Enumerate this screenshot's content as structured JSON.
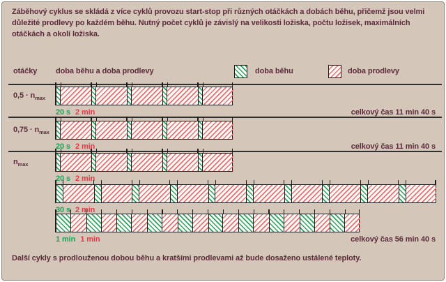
{
  "intro": {
    "text": "Záběhový cyklus se skládá z více cyklů provozu start-stop při různých otáčkách a dobách běhu, přičemž jsou velmi důležité prodlevy po každém běhu. Nutný počet cyklů je závislý na velikosti ložiska, počtu ložisek, maximálních otáčkách a okolí ložiska."
  },
  "header": {
    "axis_label": "otáčky",
    "bars_title": "doba běhu a doba prodlevy",
    "legend_run_label": "doba běhu",
    "legend_dwell_label": "doba prodlevy"
  },
  "footer": {
    "text": "Další cykly s prodlouženou dobou běhu a kratšími prodlevami až bude dosaženo ustálené teploty."
  },
  "colors": {
    "background": "#d4c7ba",
    "text_maroon": "#5d2b3b",
    "run_green": "#2aa261",
    "dwell_red": "#ef6d70",
    "run_text_green": "#1ca158",
    "dwell_text_red": "#e53946",
    "line_black": "#1c1c1c"
  },
  "chart_data": {
    "type": "bar",
    "title": "doba běhu a doba prodlevy",
    "ylabel": "otáčky",
    "legend": [
      "doba běhu",
      "doba prodlevy"
    ],
    "legend_position": "top",
    "units": "seconds",
    "rows": [
      {
        "speed": "0,5 · n",
        "speed_sub": "max",
        "cycles": 5,
        "run_s": 20,
        "dwell_s": 120,
        "run_label": "20 s",
        "dwell_label": "2 min",
        "total_s": 700,
        "total_label": "celkový čas 11 min 40 s",
        "separator_after": true
      },
      {
        "speed": "0,75 · n",
        "speed_sub": "max",
        "cycles": 5,
        "run_s": 20,
        "dwell_s": 120,
        "run_label": "20 s",
        "dwell_label": "2 min",
        "total_s": 700,
        "total_label": "celkový čas 11 min 40 s",
        "separator_after": true
      },
      {
        "speed": "n",
        "speed_sub": "max",
        "cycles": 5,
        "run_s": 20,
        "dwell_s": 120,
        "run_label": "20 s",
        "dwell_label": "2 min",
        "total_s": null,
        "total_label": null,
        "separator_after": false
      },
      {
        "speed": null,
        "speed_sub": null,
        "cycles": 10,
        "run_s": 30,
        "dwell_s": 120,
        "run_label": "30 s",
        "dwell_label": "2 min",
        "total_s": null,
        "total_label": null,
        "separator_after": false
      },
      {
        "speed": null,
        "speed_sub": null,
        "cycles": 10,
        "run_s": 60,
        "dwell_s": 60,
        "run_label": "1 min",
        "dwell_label": "1 min",
        "total_s": 3400,
        "total_label": "celkový čas 56 min 40 s",
        "separator_after": false
      }
    ]
  }
}
